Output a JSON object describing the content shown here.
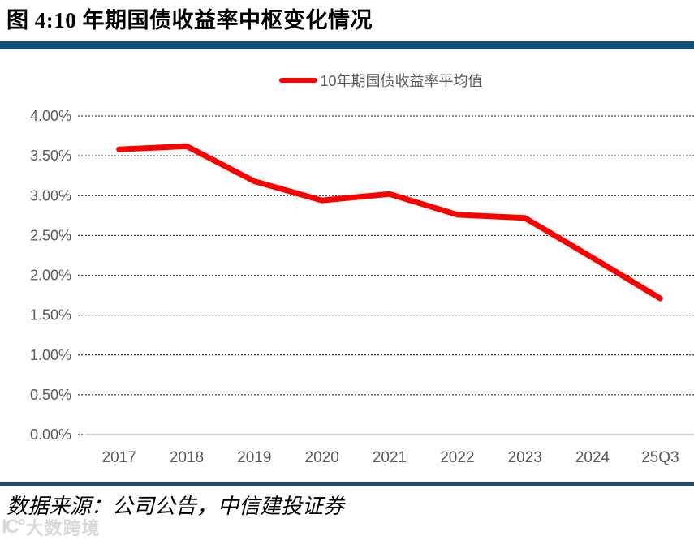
{
  "header": {
    "title": "图 4:10 年期国债收益率中枢变化情况"
  },
  "legend": {
    "label": "10年期国债收益率平均值"
  },
  "chart_data": {
    "type": "line",
    "title": "10 年期国债收益率中枢变化情况",
    "categories": [
      "2017",
      "2018",
      "2019",
      "2020",
      "2021",
      "2022",
      "2023",
      "2024",
      "25Q3"
    ],
    "series": [
      {
        "name": "10年期国债收益率平均值",
        "values": [
          3.58,
          3.62,
          3.18,
          2.94,
          3.02,
          2.76,
          2.72,
          2.22,
          1.71
        ],
        "color": "#FE0000"
      }
    ],
    "xlabel": "",
    "ylabel": "",
    "ylim": [
      0,
      4
    ],
    "yticks": [
      {
        "value": 4.0,
        "label": "4.00%"
      },
      {
        "value": 3.5,
        "label": "3.50%"
      },
      {
        "value": 3.0,
        "label": "3.00%"
      },
      {
        "value": 2.5,
        "label": "2.50%"
      },
      {
        "value": 2.0,
        "label": "2.00%"
      },
      {
        "value": 1.5,
        "label": "1.50%"
      },
      {
        "value": 1.0,
        "label": "1.00%"
      },
      {
        "value": 0.5,
        "label": "0.50%"
      },
      {
        "value": 0.0,
        "label": "0.00%"
      }
    ],
    "grid": "horizontal-dotted",
    "legend_position": "top-center"
  },
  "footer": {
    "source": "数据来源：公司公告，中信建投证券"
  },
  "watermark": {
    "logo": "IC°",
    "text": "大数跨境"
  },
  "colors": {
    "accent_rule": "#15527B",
    "line": "#FE0000",
    "grid": "#404040",
    "baseline": "#BFBFBF",
    "axis_text": "#595959"
  }
}
